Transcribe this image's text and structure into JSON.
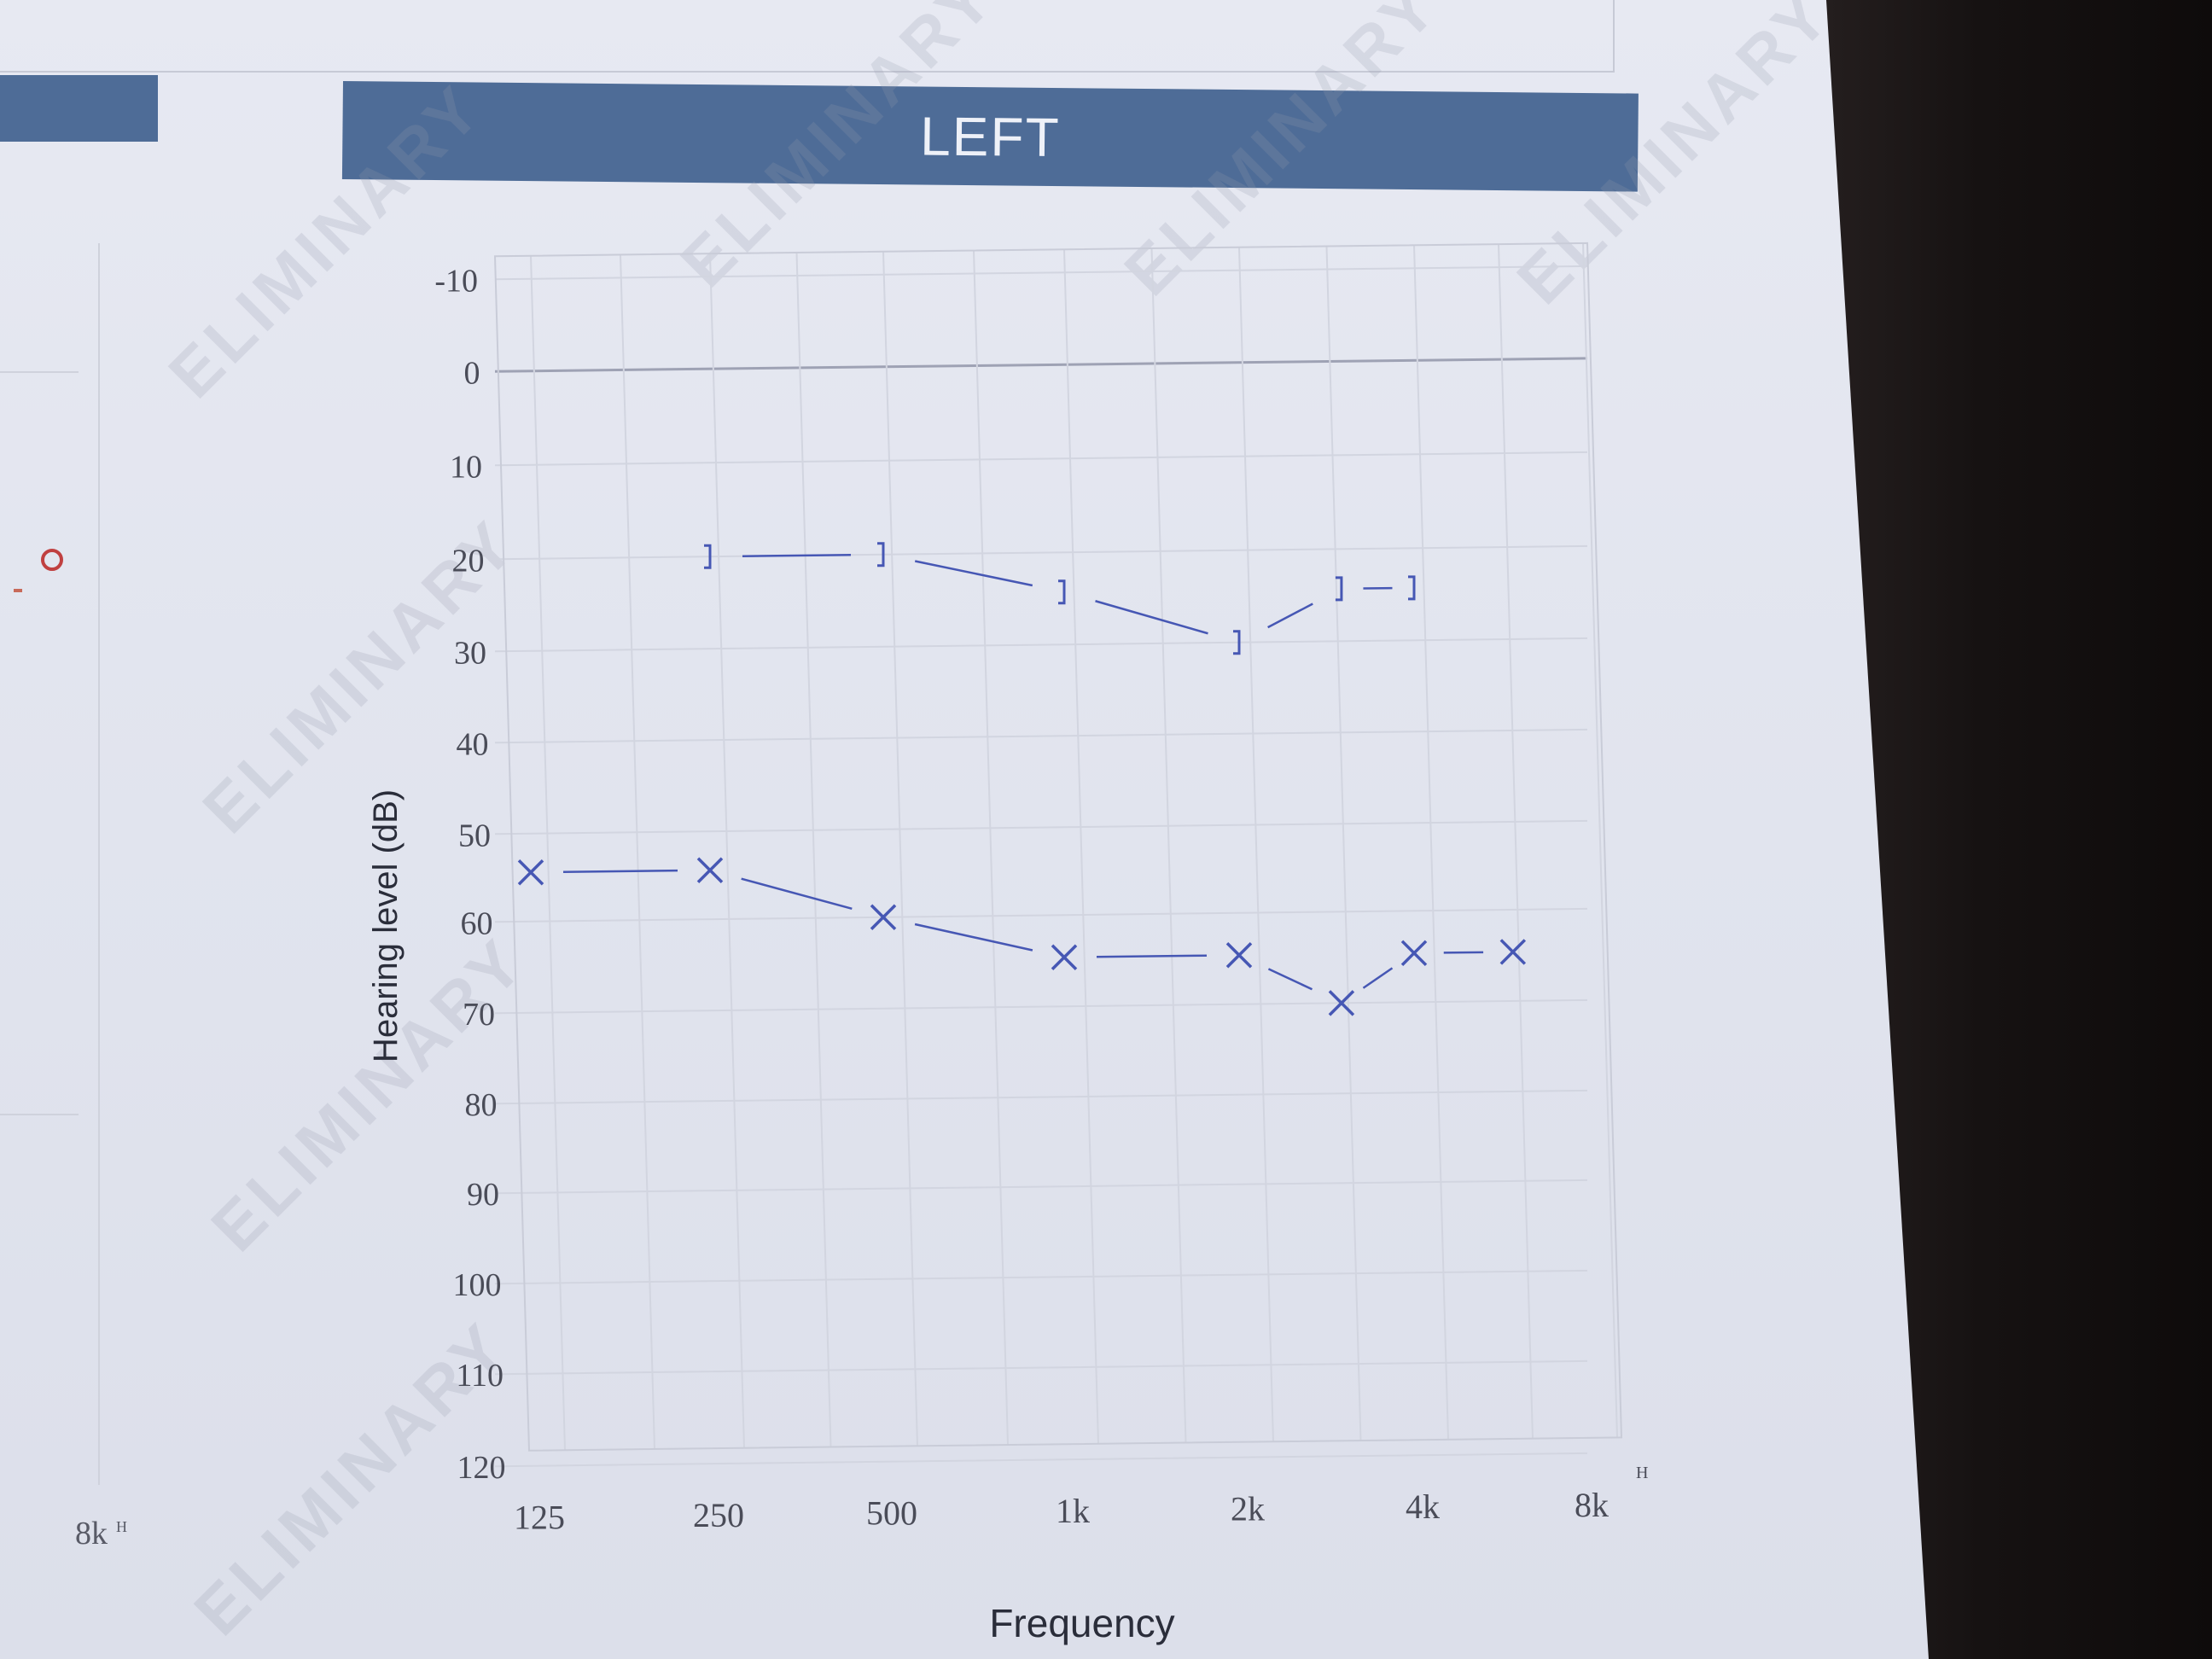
{
  "header": {
    "title": "LEFT"
  },
  "left_panel": {
    "tick_label": "8k",
    "tick_unit": "H"
  },
  "chart_data": {
    "type": "line",
    "title": "LEFT",
    "xlabel": "Frequency",
    "ylabel": "Hearing level (dB)",
    "x_ticks": [
      "125",
      "250",
      "500",
      "1k",
      "2k",
      "4k",
      "8k"
    ],
    "x_unit_label": "H",
    "y_ticks": [
      -10,
      0,
      10,
      20,
      30,
      40,
      50,
      60,
      70,
      80,
      90,
      100,
      110,
      120
    ],
    "y_inverted": true,
    "ylim": [
      -10,
      120
    ],
    "grid": true,
    "series": [
      {
        "marker": "]",
        "color": "#4657b4",
        "points": [
          {
            "x": "250",
            "y": 20
          },
          {
            "x": "500",
            "y": 20
          },
          {
            "x": "1k",
            "y": 25
          },
          {
            "x": "2k",
            "y": 30
          },
          {
            "x": "3k",
            "y": 25
          },
          {
            "x": "4k",
            "y": 25
          }
        ]
      },
      {
        "marker": "X",
        "color": "#4657b4",
        "points": [
          {
            "x": "125",
            "y": 55
          },
          {
            "x": "250",
            "y": 55
          },
          {
            "x": "500",
            "y": 60
          },
          {
            "x": "1k",
            "y": 65
          },
          {
            "x": "2k",
            "y": 65
          },
          {
            "x": "3k",
            "y": 70
          },
          {
            "x": "4k",
            "y": 65
          },
          {
            "x": "6k",
            "y": 65
          }
        ]
      }
    ]
  }
}
